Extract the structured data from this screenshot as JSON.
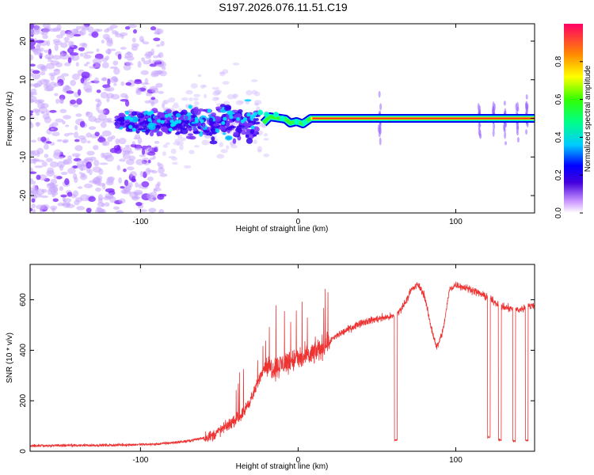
{
  "title": "S197.2026.076.11.51.C19",
  "chart_data": [
    {
      "type": "heatmap",
      "xlabel": "Height of straight line (km)",
      "ylabel": "Frequency (Hz)",
      "xlim": [
        -170,
        150
      ],
      "ylim": [
        -24.5,
        24.5
      ],
      "xticks": [
        -100,
        0,
        100
      ],
      "yticks": [
        -20,
        -10,
        0,
        10,
        20
      ],
      "colorbar": {
        "label": "Normalized spectral amplitude",
        "range": [
          0,
          1
        ],
        "ticks": [
          "0.0",
          "0.2",
          "0.4",
          "0.6",
          "0.8"
        ],
        "tick_values": [
          0,
          0.2,
          0.4,
          0.6,
          0.8
        ]
      },
      "features": {
        "carrier_frequency_hz": 0,
        "noise_region_km": [
          -170,
          -85
        ],
        "scatter_region_km": [
          -115,
          -25
        ],
        "carrier_onset_km": -22,
        "spike_heights_km": [
          52,
          115,
          124,
          131,
          139,
          145
        ]
      }
    },
    {
      "type": "line",
      "xlabel": "Height of straight line (km)",
      "ylabel": "SNR (10 * v/v)",
      "xlim": [
        -170,
        150
      ],
      "ylim": [
        0,
        740
      ],
      "xticks": [
        -100,
        0,
        100
      ],
      "yticks": [
        0,
        200,
        400,
        600
      ],
      "series_color": "#ee3333",
      "trend_points": [
        {
          "x": -170,
          "y": 22
        },
        {
          "x": -120,
          "y": 24
        },
        {
          "x": -90,
          "y": 28
        },
        {
          "x": -70,
          "y": 40
        },
        {
          "x": -55,
          "y": 60
        },
        {
          "x": -45,
          "y": 100
        },
        {
          "x": -35,
          "y": 150
        },
        {
          "x": -28,
          "y": 230
        },
        {
          "x": -22,
          "y": 330
        },
        {
          "x": -15,
          "y": 330
        },
        {
          "x": -5,
          "y": 360
        },
        {
          "x": 5,
          "y": 370
        },
        {
          "x": 15,
          "y": 410
        },
        {
          "x": 25,
          "y": 460
        },
        {
          "x": 40,
          "y": 510
        },
        {
          "x": 55,
          "y": 530
        },
        {
          "x": 62,
          "y": 535
        },
        {
          "x": 67,
          "y": 580
        },
        {
          "x": 72,
          "y": 640
        },
        {
          "x": 76,
          "y": 660
        },
        {
          "x": 80,
          "y": 620
        },
        {
          "x": 84,
          "y": 500
        },
        {
          "x": 88,
          "y": 410
        },
        {
          "x": 92,
          "y": 480
        },
        {
          "x": 96,
          "y": 640
        },
        {
          "x": 100,
          "y": 660
        },
        {
          "x": 110,
          "y": 640
        },
        {
          "x": 120,
          "y": 610
        },
        {
          "x": 130,
          "y": 570
        },
        {
          "x": 140,
          "y": 560
        },
        {
          "x": 150,
          "y": 580
        }
      ],
      "dropouts": [
        {
          "x": 62,
          "y": 45
        },
        {
          "x": 121,
          "y": 55
        },
        {
          "x": 128,
          "y": 45
        },
        {
          "x": 137,
          "y": 40
        },
        {
          "x": 145,
          "y": 45
        }
      ]
    }
  ]
}
